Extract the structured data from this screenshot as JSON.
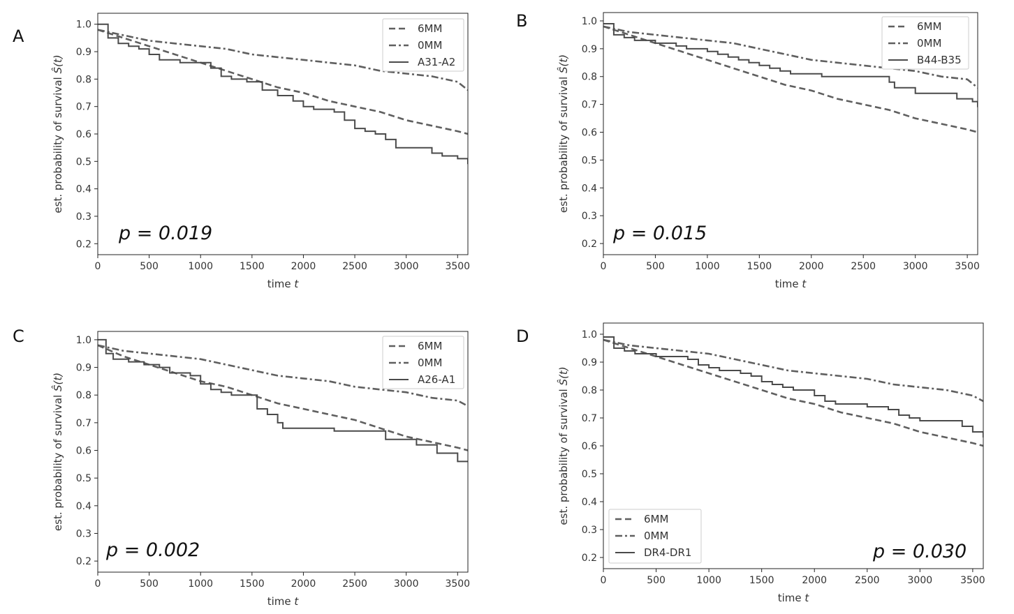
{
  "chart_data": [
    {
      "panel": "A",
      "type": "line",
      "xlabel": "time",
      "xlabel_var": "t",
      "ylabel": "est. probability of survival",
      "ylabel_var": "Ŝ(t)",
      "xlim": [
        0,
        3600
      ],
      "ylim": [
        0.16,
        1.04
      ],
      "xticks": [
        0,
        500,
        1000,
        1500,
        2000,
        2500,
        3000,
        3500
      ],
      "yticks": [
        0.2,
        0.3,
        0.4,
        0.5,
        0.6,
        0.7,
        0.8,
        0.9,
        1.0
      ],
      "grid": false,
      "legend_position": "top-right",
      "annotation": "p = 0.019",
      "annotation_position": "bottom-left",
      "series": [
        {
          "name": "6MM",
          "style": "dashed",
          "x": [
            0,
            250,
            500,
            750,
            1000,
            1250,
            1500,
            1750,
            2000,
            2250,
            2500,
            2750,
            3000,
            3250,
            3500,
            3600
          ],
          "y": [
            0.98,
            0.95,
            0.92,
            0.89,
            0.86,
            0.83,
            0.8,
            0.77,
            0.75,
            0.72,
            0.7,
            0.68,
            0.65,
            0.63,
            0.61,
            0.6
          ]
        },
        {
          "name": "0MM",
          "style": "dashdot",
          "x": [
            0,
            250,
            500,
            750,
            1000,
            1250,
            1500,
            1750,
            2000,
            2250,
            2500,
            2750,
            3000,
            3250,
            3500,
            3600
          ],
          "y": [
            0.98,
            0.96,
            0.94,
            0.93,
            0.92,
            0.91,
            0.89,
            0.88,
            0.87,
            0.86,
            0.85,
            0.83,
            0.82,
            0.81,
            0.79,
            0.76
          ]
        },
        {
          "name": "A31-A2",
          "style": "solid",
          "x": [
            0,
            100,
            200,
            300,
            400,
            500,
            600,
            700,
            800,
            900,
            1000,
            1100,
            1200,
            1300,
            1450,
            1600,
            1750,
            1900,
            2000,
            2100,
            2300,
            2400,
            2500,
            2600,
            2700,
            2800,
            2900,
            3100,
            3250,
            3350,
            3500,
            3600
          ],
          "y": [
            1.0,
            0.95,
            0.93,
            0.92,
            0.91,
            0.89,
            0.87,
            0.87,
            0.86,
            0.86,
            0.86,
            0.84,
            0.81,
            0.8,
            0.79,
            0.76,
            0.74,
            0.72,
            0.7,
            0.69,
            0.68,
            0.65,
            0.62,
            0.61,
            0.6,
            0.58,
            0.55,
            0.55,
            0.53,
            0.52,
            0.51,
            0.49
          ]
        }
      ]
    },
    {
      "panel": "B",
      "type": "line",
      "xlabel": "time",
      "xlabel_var": "t",
      "ylabel": "est. probability of survival",
      "ylabel_var": "Ŝ(t)",
      "xlim": [
        0,
        3600
      ],
      "ylim": [
        0.16,
        1.03
      ],
      "xticks": [
        0,
        500,
        1000,
        1500,
        2000,
        2500,
        3000,
        3500
      ],
      "yticks": [
        0.2,
        0.3,
        0.4,
        0.5,
        0.6,
        0.7,
        0.8,
        0.9,
        1.0
      ],
      "grid": false,
      "legend_position": "top-right",
      "annotation": "p = 0.015",
      "annotation_position": "bottom-left",
      "series": [
        {
          "name": "6MM",
          "style": "dashed",
          "x": [
            0,
            250,
            500,
            750,
            1000,
            1250,
            1500,
            1750,
            2000,
            2250,
            2500,
            2750,
            3000,
            3250,
            3500,
            3600
          ],
          "y": [
            0.98,
            0.95,
            0.92,
            0.89,
            0.86,
            0.83,
            0.8,
            0.77,
            0.75,
            0.72,
            0.7,
            0.68,
            0.65,
            0.63,
            0.61,
            0.6
          ]
        },
        {
          "name": "0MM",
          "style": "dashdot",
          "x": [
            0,
            250,
            500,
            750,
            1000,
            1250,
            1500,
            1750,
            2000,
            2250,
            2500,
            2750,
            3000,
            3250,
            3500,
            3600
          ],
          "y": [
            0.98,
            0.96,
            0.95,
            0.94,
            0.93,
            0.92,
            0.9,
            0.88,
            0.86,
            0.85,
            0.84,
            0.83,
            0.82,
            0.8,
            0.79,
            0.76
          ]
        },
        {
          "name": "B44-B35",
          "style": "solid",
          "x": [
            0,
            100,
            200,
            300,
            400,
            500,
            600,
            700,
            800,
            900,
            1000,
            1100,
            1200,
            1300,
            1400,
            1500,
            1600,
            1700,
            1800,
            1900,
            2000,
            2100,
            2300,
            2500,
            2700,
            2750,
            2800,
            3000,
            3200,
            3400,
            3550,
            3600
          ],
          "y": [
            0.99,
            0.95,
            0.94,
            0.93,
            0.93,
            0.92,
            0.92,
            0.91,
            0.9,
            0.9,
            0.89,
            0.88,
            0.87,
            0.86,
            0.85,
            0.84,
            0.83,
            0.82,
            0.81,
            0.81,
            0.81,
            0.8,
            0.8,
            0.8,
            0.8,
            0.78,
            0.76,
            0.74,
            0.74,
            0.72,
            0.71,
            0.69
          ]
        }
      ]
    },
    {
      "panel": "C",
      "type": "line",
      "xlabel": "time",
      "xlabel_var": "t",
      "ylabel": "est. probability of survival",
      "ylabel_var": "Ŝ(t)",
      "xlim": [
        0,
        3600
      ],
      "ylim": [
        0.16,
        1.03
      ],
      "xticks": [
        0,
        500,
        1000,
        1500,
        2000,
        2500,
        3000,
        3500
      ],
      "yticks": [
        0.2,
        0.3,
        0.4,
        0.5,
        0.6,
        0.7,
        0.8,
        0.9,
        1.0
      ],
      "grid": false,
      "legend_position": "top-right",
      "annotation": "p = 0.002",
      "annotation_position": "bottom-left",
      "series": [
        {
          "name": "6MM",
          "style": "dashed",
          "x": [
            0,
            250,
            500,
            750,
            1000,
            1250,
            1500,
            1750,
            2000,
            2250,
            2500,
            2750,
            3000,
            3250,
            3500,
            3600
          ],
          "y": [
            0.98,
            0.94,
            0.91,
            0.88,
            0.85,
            0.83,
            0.8,
            0.77,
            0.75,
            0.73,
            0.71,
            0.68,
            0.65,
            0.63,
            0.61,
            0.6
          ]
        },
        {
          "name": "0MM",
          "style": "dashdot",
          "x": [
            0,
            250,
            500,
            750,
            1000,
            1250,
            1500,
            1750,
            2000,
            2250,
            2500,
            2750,
            3000,
            3250,
            3500,
            3600
          ],
          "y": [
            0.98,
            0.96,
            0.95,
            0.94,
            0.93,
            0.91,
            0.89,
            0.87,
            0.86,
            0.85,
            0.83,
            0.82,
            0.81,
            0.79,
            0.78,
            0.76
          ]
        },
        {
          "name": "A26-A1",
          "style": "solid",
          "x": [
            0,
            80,
            150,
            300,
            450,
            600,
            700,
            900,
            1000,
            1100,
            1200,
            1300,
            1450,
            1550,
            1650,
            1750,
            1800,
            1900,
            2050,
            2300,
            2500,
            2700,
            2800,
            3000,
            3100,
            3300,
            3500,
            3600
          ],
          "y": [
            1.0,
            0.95,
            0.93,
            0.92,
            0.91,
            0.9,
            0.88,
            0.87,
            0.84,
            0.82,
            0.81,
            0.8,
            0.8,
            0.75,
            0.73,
            0.7,
            0.68,
            0.68,
            0.68,
            0.67,
            0.67,
            0.67,
            0.64,
            0.64,
            0.62,
            0.59,
            0.56,
            0.56
          ]
        }
      ]
    },
    {
      "panel": "D",
      "type": "line",
      "xlabel": "time",
      "xlabel_var": "t",
      "ylabel": "est. probability of survival",
      "ylabel_var": "Ŝ(t)",
      "xlim": [
        0,
        3600
      ],
      "ylim": [
        0.16,
        1.04
      ],
      "xticks": [
        0,
        500,
        1000,
        1500,
        2000,
        2500,
        3000,
        3500
      ],
      "yticks": [
        0.2,
        0.3,
        0.4,
        0.5,
        0.6,
        0.7,
        0.8,
        0.9,
        1.0
      ],
      "grid": false,
      "legend_position": "bottom-left",
      "annotation": "p = 0.030",
      "annotation_position": "bottom-right",
      "series": [
        {
          "name": "6MM",
          "style": "dashed",
          "x": [
            0,
            250,
            500,
            750,
            1000,
            1250,
            1500,
            1750,
            2000,
            2250,
            2500,
            2750,
            3000,
            3250,
            3500,
            3600
          ],
          "y": [
            0.98,
            0.95,
            0.92,
            0.89,
            0.86,
            0.83,
            0.8,
            0.77,
            0.75,
            0.72,
            0.7,
            0.68,
            0.65,
            0.63,
            0.61,
            0.6
          ]
        },
        {
          "name": "0MM",
          "style": "dashdot",
          "x": [
            0,
            250,
            500,
            750,
            1000,
            1250,
            1500,
            1750,
            2000,
            2250,
            2500,
            2750,
            3000,
            3250,
            3500,
            3600
          ],
          "y": [
            0.98,
            0.96,
            0.95,
            0.94,
            0.93,
            0.91,
            0.89,
            0.87,
            0.86,
            0.85,
            0.84,
            0.82,
            0.81,
            0.8,
            0.78,
            0.76
          ]
        },
        {
          "name": "DR4-DR1",
          "style": "solid",
          "x": [
            0,
            100,
            200,
            300,
            400,
            500,
            600,
            700,
            800,
            900,
            1000,
            1100,
            1200,
            1300,
            1400,
            1500,
            1600,
            1700,
            1800,
            1900,
            2000,
            2100,
            2200,
            2300,
            2500,
            2700,
            2800,
            2900,
            3000,
            3100,
            3300,
            3400,
            3500,
            3600
          ],
          "y": [
            0.99,
            0.95,
            0.94,
            0.93,
            0.93,
            0.92,
            0.92,
            0.92,
            0.91,
            0.89,
            0.88,
            0.87,
            0.87,
            0.86,
            0.85,
            0.83,
            0.82,
            0.81,
            0.8,
            0.8,
            0.78,
            0.76,
            0.75,
            0.75,
            0.74,
            0.73,
            0.71,
            0.7,
            0.69,
            0.69,
            0.69,
            0.67,
            0.65,
            0.63
          ]
        }
      ]
    }
  ]
}
